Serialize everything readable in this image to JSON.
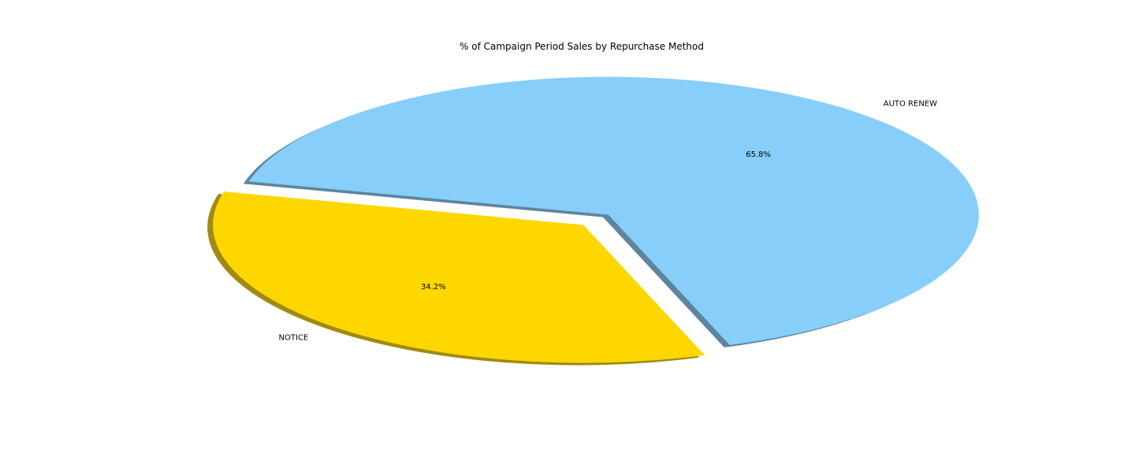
{
  "chart_data": {
    "type": "pie",
    "title": "% of Campaign Period Sales by Repurchase Method",
    "slices": [
      {
        "label": "NOTICE",
        "value": 34.2,
        "pct_label": "34.2%",
        "color": "#FFD700",
        "exploded": true
      },
      {
        "label": "AUTO RENEW",
        "value": 65.8,
        "pct_label": "65.8%",
        "color": "#87CEFA",
        "exploded": true
      }
    ],
    "shadow": true,
    "legend": "none"
  }
}
